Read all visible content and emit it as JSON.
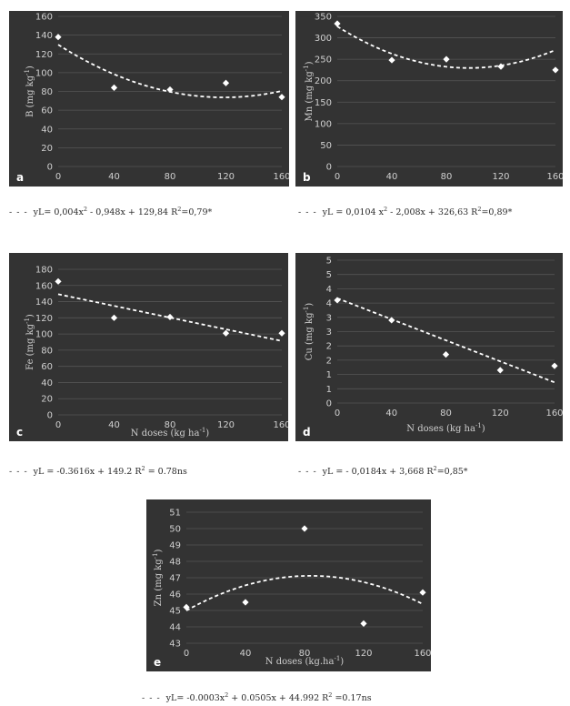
{
  "chart_data": [
    {
      "id": "a",
      "type": "scatter",
      "panel_letter": "a",
      "ylabel": "B (mg kg-1)",
      "xlabel": "",
      "xlim": [
        0,
        160
      ],
      "ylim": [
        0,
        160
      ],
      "x_ticks": [
        "0",
        "40",
        "80",
        "120",
        "160"
      ],
      "y_ticks": [
        "0",
        "20",
        "40",
        "60",
        "80",
        "100",
        "120",
        "140",
        "160"
      ],
      "points": [
        {
          "x": 0,
          "y": 138
        },
        {
          "x": 40,
          "y": 84
        },
        {
          "x": 80,
          "y": 82
        },
        {
          "x": 120,
          "y": 89
        },
        {
          "x": 160,
          "y": 74
        }
      ],
      "trend": {
        "kind": "quadratic",
        "coef": [
          0.004,
          -0.948,
          129.84
        ]
      },
      "equation": {
        "prefix": "yL= 0,004x",
        "mid": " - 0,948x + 129,84 R",
        "suffix": "=0,79*"
      }
    },
    {
      "id": "b",
      "type": "scatter",
      "panel_letter": "b",
      "ylabel": "Mn (mg kg-1)",
      "xlabel": "",
      "xlim": [
        0,
        160
      ],
      "ylim": [
        0,
        350
      ],
      "x_ticks": [
        "0",
        "40",
        "80",
        "120",
        "160"
      ],
      "y_ticks": [
        "0",
        "50",
        "100",
        "150",
        "200",
        "250",
        "300",
        "350"
      ],
      "points": [
        {
          "x": 0,
          "y": 333
        },
        {
          "x": 40,
          "y": 248
        },
        {
          "x": 80,
          "y": 250
        },
        {
          "x": 120,
          "y": 233
        },
        {
          "x": 160,
          "y": 225
        }
      ],
      "trend": {
        "kind": "quadratic",
        "coef": [
          0.0104,
          -2.008,
          326.63
        ]
      },
      "equation": {
        "prefix": "yL = 0,0104 x",
        "mid": " - 2,008x + 326,63 R",
        "suffix": "=0,89*"
      }
    },
    {
      "id": "c",
      "type": "scatter",
      "panel_letter": "c",
      "ylabel": "Fe (mg kg-1)",
      "xlabel": "N doses (kg ha-1)",
      "xlim": [
        0,
        160
      ],
      "ylim": [
        0,
        180
      ],
      "x_ticks": [
        "0",
        "40",
        "80",
        "120",
        "160"
      ],
      "y_ticks": [
        "0",
        "20",
        "40",
        "60",
        "80",
        "100",
        "120",
        "140",
        "160",
        "180"
      ],
      "points": [
        {
          "x": 0,
          "y": 165
        },
        {
          "x": 40,
          "y": 120
        },
        {
          "x": 80,
          "y": 121
        },
        {
          "x": 120,
          "y": 101
        },
        {
          "x": 160,
          "y": 101
        }
      ],
      "trend": {
        "kind": "linear",
        "coef": [
          -0.3616,
          149.2
        ]
      },
      "equation": {
        "prefix": "yL = -0.3616x + 149.2   R",
        "suffix": " = 0.78ns"
      }
    },
    {
      "id": "d",
      "type": "scatter",
      "panel_letter": "d",
      "ylabel": "Cu (mg kg-1)",
      "xlabel": "N doses (kg ha-1)",
      "xlim": [
        0,
        160
      ],
      "ylim": [
        0,
        5
      ],
      "x_ticks": [
        "0",
        "40",
        "80",
        "120",
        "160"
      ],
      "y_ticks": [
        "0",
        "1",
        "1",
        "2",
        "2",
        "3",
        "3",
        "4",
        "4",
        "5",
        "5"
      ],
      "points": [
        {
          "x": 0,
          "y": 3.6
        },
        {
          "x": 40,
          "y": 2.9
        },
        {
          "x": 80,
          "y": 1.7
        },
        {
          "x": 120,
          "y": 1.15
        },
        {
          "x": 160,
          "y": 1.3
        }
      ],
      "trend": {
        "kind": "linear",
        "coef": [
          -0.0184,
          3.668
        ]
      },
      "equation": {
        "prefix": "yL = - 0,0184x + 3,668       R",
        "suffix": "=0,85*"
      }
    },
    {
      "id": "e",
      "type": "scatter",
      "panel_letter": "e",
      "ylabel": "Zn (mg kg-1)",
      "xlabel": "N doses (kg.ha-1)",
      "xlim": [
        0,
        160
      ],
      "ylim": [
        43,
        51
      ],
      "x_ticks": [
        "0",
        "40",
        "80",
        "120",
        "160"
      ],
      "y_ticks": [
        "43",
        "44",
        "45",
        "46",
        "47",
        "48",
        "49",
        "50",
        "51"
      ],
      "points": [
        {
          "x": 0,
          "y": 45.2
        },
        {
          "x": 40,
          "y": 45.5
        },
        {
          "x": 80,
          "y": 50.0
        },
        {
          "x": 120,
          "y": 44.2
        },
        {
          "x": 160,
          "y": 46.1
        }
      ],
      "trend": {
        "kind": "quadratic",
        "coef": [
          -0.0003,
          0.0505,
          44.992
        ]
      },
      "equation": {
        "prefix": "yL= -0.0003x",
        "mid": " + 0.0505x + 44.992  R",
        "suffix": " =0.17ns"
      }
    }
  ],
  "colors": {
    "panel_bg": "#333333",
    "grid": "#555555",
    "tick_text": "#cfcfcf",
    "points": "#ffffff",
    "trend": "#ffffff",
    "letter": "#ffffff",
    "equation_text": "#2a2a2a"
  }
}
